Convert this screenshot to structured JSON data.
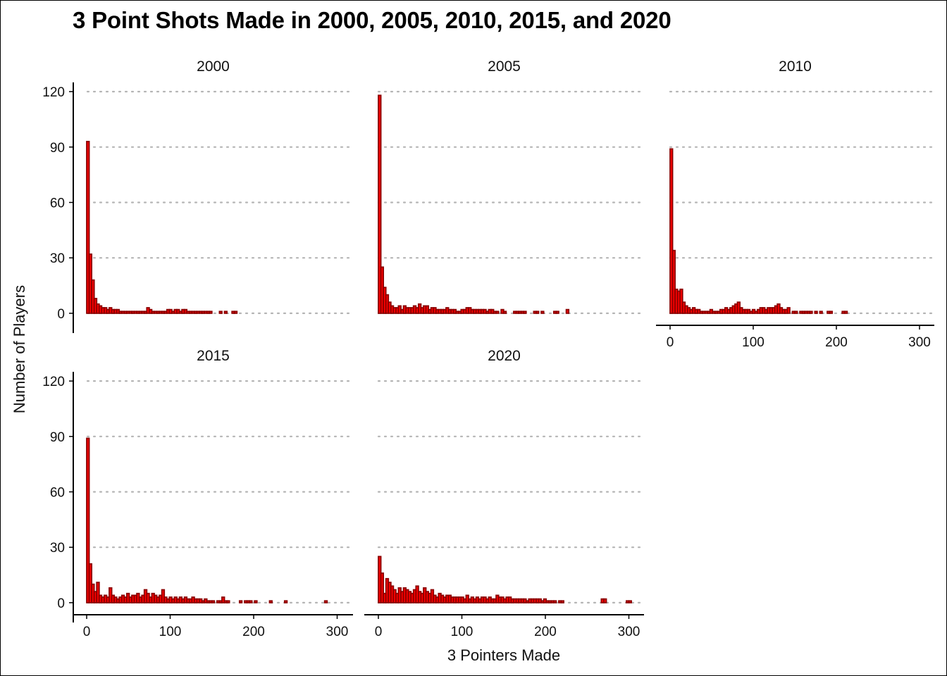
{
  "chart_data": {
    "type": "bar",
    "title": "3 Point Shots Made in 2000, 2005, 2010, 2015, and 2020",
    "xlabel": "3 Pointers Made",
    "ylabel": "Number of Players",
    "xlim": [
      -5,
      305
    ],
    "ylim": [
      -5,
      125
    ],
    "x_ticks": [
      0,
      100,
      200,
      300
    ],
    "y_ticks": [
      0,
      30,
      60,
      90,
      120
    ],
    "bin_width": 3,
    "grid": "horizontal dotted",
    "colors": {
      "fill": "#ff0000",
      "outline": "#8b0000"
    },
    "panels": [
      {
        "label": "2000",
        "bins": [
          [
            0,
            93
          ],
          [
            3,
            32
          ],
          [
            6,
            18
          ],
          [
            9,
            8
          ],
          [
            12,
            5
          ],
          [
            15,
            4
          ],
          [
            18,
            3
          ],
          [
            21,
            3
          ],
          [
            24,
            2
          ],
          [
            27,
            3
          ],
          [
            30,
            2
          ],
          [
            33,
            2
          ],
          [
            36,
            2
          ],
          [
            39,
            1
          ],
          [
            42,
            1
          ],
          [
            45,
            1
          ],
          [
            48,
            1
          ],
          [
            51,
            1
          ],
          [
            54,
            1
          ],
          [
            57,
            1
          ],
          [
            60,
            1
          ],
          [
            63,
            1
          ],
          [
            66,
            1
          ],
          [
            69,
            1
          ],
          [
            72,
            3
          ],
          [
            75,
            2
          ],
          [
            78,
            1
          ],
          [
            81,
            1
          ],
          [
            84,
            1
          ],
          [
            87,
            1
          ],
          [
            90,
            1
          ],
          [
            93,
            1
          ],
          [
            96,
            2
          ],
          [
            99,
            2
          ],
          [
            102,
            1
          ],
          [
            105,
            2
          ],
          [
            108,
            2
          ],
          [
            111,
            1
          ],
          [
            114,
            2
          ],
          [
            117,
            2
          ],
          [
            120,
            1
          ],
          [
            123,
            1
          ],
          [
            126,
            1
          ],
          [
            129,
            1
          ],
          [
            132,
            1
          ],
          [
            135,
            1
          ],
          [
            138,
            1
          ],
          [
            141,
            1
          ],
          [
            144,
            1
          ],
          [
            147,
            1
          ],
          [
            159,
            1
          ],
          [
            165,
            1
          ],
          [
            174,
            1
          ],
          [
            177,
            1
          ]
        ]
      },
      {
        "label": "2005",
        "bins": [
          [
            0,
            118
          ],
          [
            3,
            25
          ],
          [
            6,
            14
          ],
          [
            9,
            10
          ],
          [
            12,
            6
          ],
          [
            15,
            4
          ],
          [
            18,
            3
          ],
          [
            21,
            3
          ],
          [
            24,
            4
          ],
          [
            27,
            2
          ],
          [
            30,
            4
          ],
          [
            33,
            3
          ],
          [
            36,
            3
          ],
          [
            39,
            3
          ],
          [
            42,
            4
          ],
          [
            45,
            3
          ],
          [
            48,
            5
          ],
          [
            51,
            3
          ],
          [
            54,
            4
          ],
          [
            57,
            4
          ],
          [
            60,
            2
          ],
          [
            63,
            3
          ],
          [
            66,
            3
          ],
          [
            69,
            2
          ],
          [
            72,
            2
          ],
          [
            75,
            2
          ],
          [
            78,
            2
          ],
          [
            81,
            3
          ],
          [
            84,
            2
          ],
          [
            87,
            2
          ],
          [
            90,
            2
          ],
          [
            93,
            1
          ],
          [
            96,
            1
          ],
          [
            99,
            2
          ],
          [
            102,
            2
          ],
          [
            105,
            3
          ],
          [
            108,
            3
          ],
          [
            111,
            2
          ],
          [
            114,
            2
          ],
          [
            117,
            2
          ],
          [
            120,
            2
          ],
          [
            123,
            2
          ],
          [
            126,
            2
          ],
          [
            129,
            1
          ],
          [
            132,
            2
          ],
          [
            135,
            2
          ],
          [
            138,
            1
          ],
          [
            141,
            1
          ],
          [
            147,
            2
          ],
          [
            150,
            1
          ],
          [
            162,
            1
          ],
          [
            165,
            1
          ],
          [
            168,
            1
          ],
          [
            171,
            1
          ],
          [
            174,
            1
          ],
          [
            186,
            1
          ],
          [
            189,
            1
          ],
          [
            195,
            1
          ],
          [
            210,
            1
          ],
          [
            213,
            1
          ],
          [
            225,
            2
          ]
        ]
      },
      {
        "label": "2010",
        "bins": [
          [
            0,
            89
          ],
          [
            3,
            34
          ],
          [
            6,
            13
          ],
          [
            9,
            12
          ],
          [
            12,
            13
          ],
          [
            15,
            6
          ],
          [
            18,
            4
          ],
          [
            21,
            3
          ],
          [
            24,
            2
          ],
          [
            27,
            3
          ],
          [
            30,
            2
          ],
          [
            33,
            2
          ],
          [
            36,
            1
          ],
          [
            39,
            1
          ],
          [
            42,
            1
          ],
          [
            45,
            1
          ],
          [
            48,
            2
          ],
          [
            51,
            1
          ],
          [
            54,
            1
          ],
          [
            57,
            1
          ],
          [
            60,
            2
          ],
          [
            63,
            2
          ],
          [
            66,
            3
          ],
          [
            69,
            2
          ],
          [
            72,
            3
          ],
          [
            75,
            4
          ],
          [
            78,
            5
          ],
          [
            81,
            6
          ],
          [
            84,
            3
          ],
          [
            87,
            2
          ],
          [
            90,
            2
          ],
          [
            93,
            2
          ],
          [
            96,
            1
          ],
          [
            99,
            2
          ],
          [
            102,
            1
          ],
          [
            105,
            2
          ],
          [
            108,
            3
          ],
          [
            111,
            3
          ],
          [
            114,
            2
          ],
          [
            117,
            3
          ],
          [
            120,
            3
          ],
          [
            123,
            3
          ],
          [
            126,
            4
          ],
          [
            129,
            5
          ],
          [
            132,
            3
          ],
          [
            135,
            2
          ],
          [
            138,
            2
          ],
          [
            141,
            3
          ],
          [
            147,
            1
          ],
          [
            150,
            1
          ],
          [
            156,
            1
          ],
          [
            159,
            1
          ],
          [
            162,
            1
          ],
          [
            165,
            1
          ],
          [
            168,
            1
          ],
          [
            174,
            1
          ],
          [
            180,
            1
          ],
          [
            189,
            1
          ],
          [
            192,
            1
          ],
          [
            207,
            1
          ],
          [
            210,
            1
          ]
        ]
      },
      {
        "label": "2015",
        "bins": [
          [
            0,
            89
          ],
          [
            3,
            21
          ],
          [
            6,
            10
          ],
          [
            9,
            6
          ],
          [
            12,
            11
          ],
          [
            15,
            4
          ],
          [
            18,
            3
          ],
          [
            21,
            4
          ],
          [
            24,
            3
          ],
          [
            27,
            8
          ],
          [
            30,
            4
          ],
          [
            33,
            3
          ],
          [
            36,
            2
          ],
          [
            39,
            3
          ],
          [
            42,
            4
          ],
          [
            45,
            3
          ],
          [
            48,
            5
          ],
          [
            51,
            3
          ],
          [
            54,
            4
          ],
          [
            57,
            4
          ],
          [
            60,
            5
          ],
          [
            63,
            3
          ],
          [
            66,
            4
          ],
          [
            69,
            7
          ],
          [
            72,
            5
          ],
          [
            75,
            3
          ],
          [
            78,
            5
          ],
          [
            81,
            4
          ],
          [
            84,
            3
          ],
          [
            87,
            4
          ],
          [
            90,
            7
          ],
          [
            93,
            3
          ],
          [
            96,
            2
          ],
          [
            99,
            3
          ],
          [
            102,
            2
          ],
          [
            105,
            3
          ],
          [
            108,
            2
          ],
          [
            111,
            3
          ],
          [
            114,
            2
          ],
          [
            117,
            3
          ],
          [
            120,
            2
          ],
          [
            123,
            2
          ],
          [
            126,
            3
          ],
          [
            129,
            2
          ],
          [
            132,
            2
          ],
          [
            135,
            2
          ],
          [
            138,
            1
          ],
          [
            141,
            2
          ],
          [
            144,
            1
          ],
          [
            147,
            1
          ],
          [
            150,
            1
          ],
          [
            156,
            1
          ],
          [
            159,
            1
          ],
          [
            162,
            3
          ],
          [
            165,
            1
          ],
          [
            168,
            1
          ],
          [
            183,
            1
          ],
          [
            189,
            1
          ],
          [
            192,
            1
          ],
          [
            195,
            1
          ],
          [
            201,
            1
          ],
          [
            219,
            1
          ],
          [
            237,
            1
          ],
          [
            285,
            1
          ]
        ]
      },
      {
        "label": "2020",
        "bins": [
          [
            0,
            25
          ],
          [
            3,
            16
          ],
          [
            6,
            5
          ],
          [
            9,
            13
          ],
          [
            12,
            11
          ],
          [
            15,
            9
          ],
          [
            18,
            7
          ],
          [
            21,
            5
          ],
          [
            24,
            8
          ],
          [
            27,
            6
          ],
          [
            30,
            8
          ],
          [
            33,
            7
          ],
          [
            36,
            6
          ],
          [
            39,
            5
          ],
          [
            42,
            7
          ],
          [
            45,
            9
          ],
          [
            48,
            6
          ],
          [
            51,
            5
          ],
          [
            54,
            8
          ],
          [
            57,
            6
          ],
          [
            60,
            5
          ],
          [
            63,
            7
          ],
          [
            66,
            4
          ],
          [
            69,
            3
          ],
          [
            72,
            5
          ],
          [
            75,
            4
          ],
          [
            78,
            3
          ],
          [
            81,
            4
          ],
          [
            84,
            4
          ],
          [
            87,
            3
          ],
          [
            90,
            3
          ],
          [
            93,
            3
          ],
          [
            96,
            3
          ],
          [
            99,
            3
          ],
          [
            102,
            2
          ],
          [
            105,
            4
          ],
          [
            108,
            2
          ],
          [
            111,
            3
          ],
          [
            114,
            2
          ],
          [
            117,
            3
          ],
          [
            120,
            2
          ],
          [
            123,
            3
          ],
          [
            126,
            3
          ],
          [
            129,
            2
          ],
          [
            132,
            3
          ],
          [
            135,
            2
          ],
          [
            138,
            2
          ],
          [
            141,
            4
          ],
          [
            144,
            3
          ],
          [
            147,
            3
          ],
          [
            150,
            2
          ],
          [
            153,
            3
          ],
          [
            156,
            3
          ],
          [
            159,
            2
          ],
          [
            162,
            2
          ],
          [
            165,
            2
          ],
          [
            168,
            2
          ],
          [
            171,
            2
          ],
          [
            174,
            2
          ],
          [
            177,
            1
          ],
          [
            180,
            2
          ],
          [
            183,
            2
          ],
          [
            186,
            2
          ],
          [
            189,
            2
          ],
          [
            192,
            2
          ],
          [
            195,
            1
          ],
          [
            198,
            2
          ],
          [
            201,
            1
          ],
          [
            204,
            1
          ],
          [
            207,
            1
          ],
          [
            210,
            1
          ],
          [
            216,
            1
          ],
          [
            219,
            1
          ],
          [
            267,
            2
          ],
          [
            270,
            2
          ],
          [
            297,
            1
          ],
          [
            300,
            1
          ]
        ]
      }
    ]
  }
}
